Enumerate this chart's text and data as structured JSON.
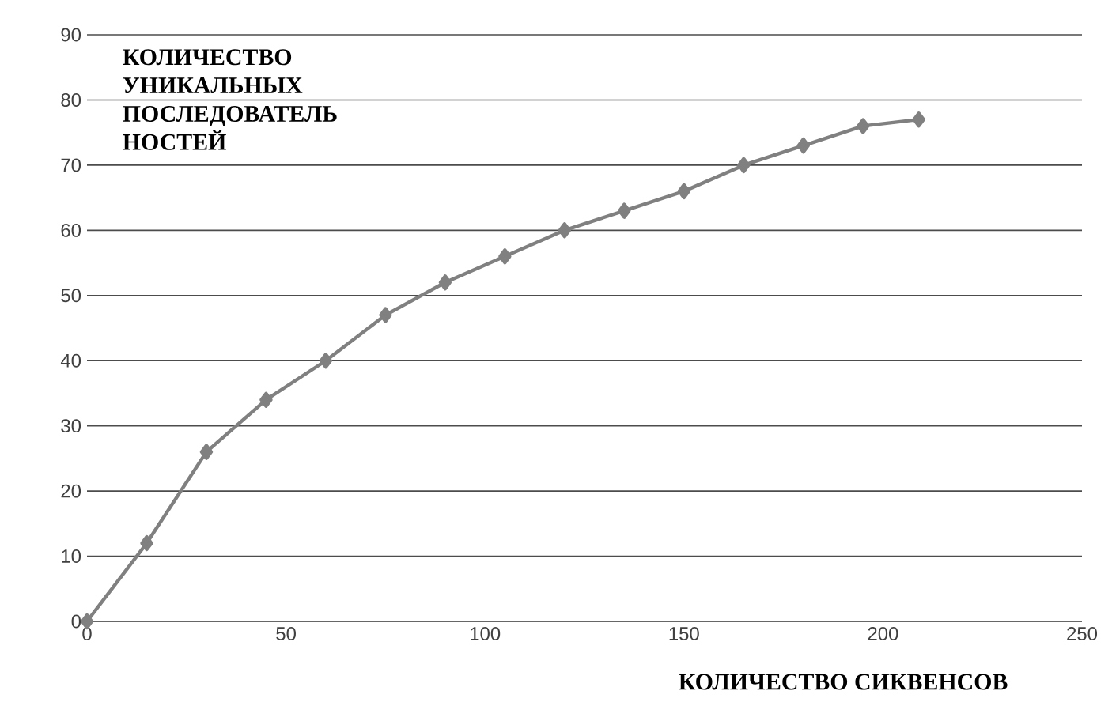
{
  "chart_data": {
    "type": "line",
    "xlabel": "КОЛИЧЕСТВО СИКВЕНСОВ",
    "ylabel": "КОЛИЧЕСТВО УНИКАЛЬНЫХ ПОСЛЕДОВАТЕЛЬ НОСТЕЙ",
    "series": [
      {
        "color": "#808080",
        "x": [
          0,
          15,
          30,
          45,
          60,
          75,
          90,
          105,
          120,
          135,
          150,
          165,
          180,
          195,
          209
        ],
        "values": [
          0,
          12,
          26,
          34,
          40,
          47,
          52,
          56,
          60,
          63,
          66,
          70,
          73,
          76,
          77
        ]
      }
    ],
    "xlim": [
      0,
      250
    ],
    "xticks": [
      0,
      50,
      100,
      150,
      200,
      250
    ],
    "ylim": [
      0,
      90
    ],
    "yticks": [
      0,
      10,
      20,
      30,
      40,
      50,
      60,
      70,
      80,
      90
    ],
    "grid": "y",
    "marker": "diamond",
    "line_style": "solid"
  }
}
